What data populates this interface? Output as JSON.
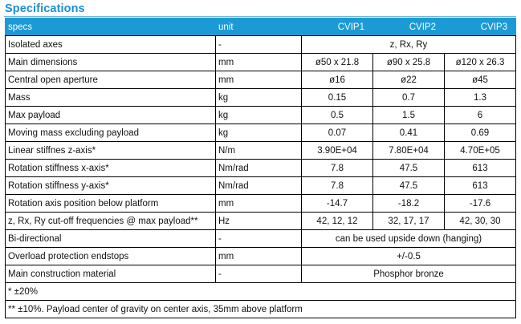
{
  "title": "Specifications",
  "headers": {
    "spec": "specs",
    "unit": "unit",
    "cols": [
      "CVIP1",
      "CVIP2",
      "CVIP3"
    ]
  },
  "rows": [
    {
      "spec": "Isolated axes",
      "unit": "-",
      "span": "z, Rx, Ry"
    },
    {
      "spec": "Main dimensions",
      "unit": "mm",
      "values": [
        "ø50 x 21.8",
        "ø90 x 25.8",
        "ø120 x 26.3"
      ]
    },
    {
      "spec": "Central open aperture",
      "unit": "mm",
      "values": [
        "ø16",
        "ø22",
        "ø45"
      ]
    },
    {
      "spec": "Mass",
      "unit": "kg",
      "values": [
        "0.15",
        "0.7",
        "1.3"
      ]
    },
    {
      "spec": "Max payload",
      "unit": "kg",
      "values": [
        "0.5",
        "1.5",
        "6"
      ]
    },
    {
      "spec": "Moving mass excluding payload",
      "unit": "kg",
      "values": [
        "0.07",
        "0.41",
        "0.69"
      ]
    },
    {
      "spec": "Linear stiffnes z-axis*",
      "unit": "N/m",
      "values": [
        "3.90E+04",
        "7.80E+04",
        "4.70E+05"
      ]
    },
    {
      "spec": "Rotation stiffness x-axis*",
      "unit": "Nm/rad",
      "values": [
        "7.8",
        "47.5",
        "613"
      ]
    },
    {
      "spec": "Rotation stiffness y-axis*",
      "unit": "Nm/rad",
      "values": [
        "7.8",
        "47.5",
        "613"
      ]
    },
    {
      "spec": "Rotation axis position below platform",
      "unit": "mm",
      "values": [
        "-14.7",
        "-18.2",
        "-17.6"
      ]
    },
    {
      "spec": "z, Rx, Ry cut-off frequencies @ max payload**",
      "unit": "Hz",
      "values": [
        "42, 12, 12",
        "32, 17, 17",
        "42, 30, 30"
      ]
    },
    {
      "spec": "Bi-directional",
      "unit": "-",
      "span": "can be used upside down (hanging)"
    },
    {
      "spec": "Overload protection endstops",
      "unit": "mm",
      "span": "+/-0.5"
    },
    {
      "spec": "Main construction material",
      "unit": "-",
      "span": "Phosphor bronze"
    }
  ],
  "footnotes": [
    "* ±20%",
    "** ±10%. Payload center of gravity on center axis, 35mm above platform"
  ]
}
